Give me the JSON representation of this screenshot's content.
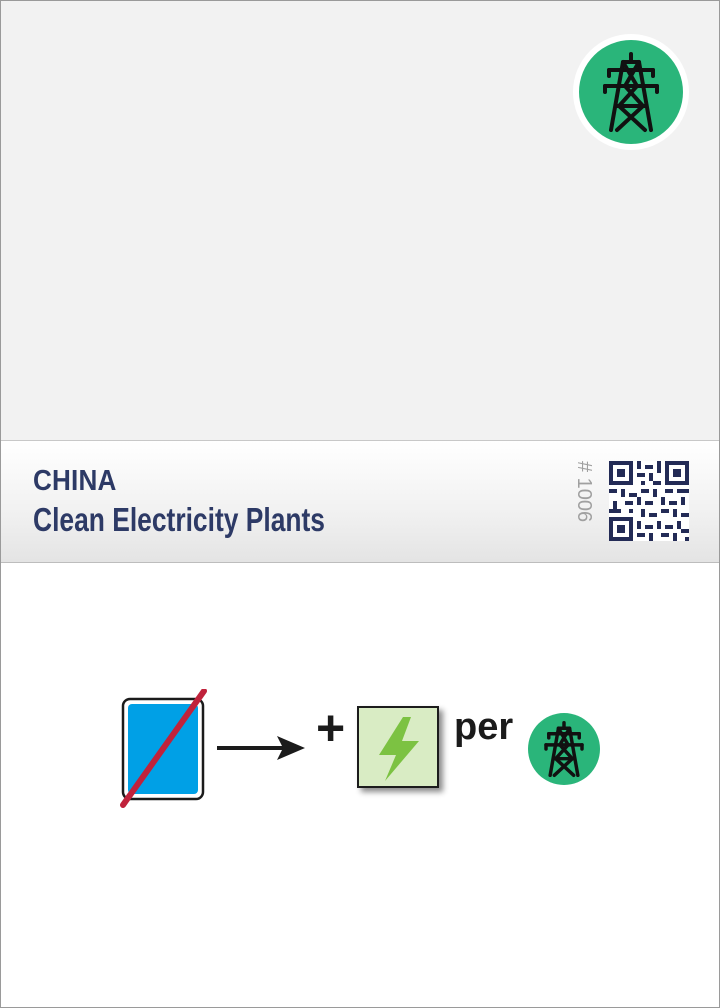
{
  "card": {
    "country": "CHINA",
    "title": "Clean Electricity Plants",
    "card_number": "# 1006"
  },
  "effect": {
    "plus_label": "+",
    "per_label": "per"
  },
  "icons": {
    "top_badge": "power-tower-icon",
    "discard_card": "blue-card-icon",
    "arrow": "arrow-right-icon",
    "energy": "lightning-bolt-icon",
    "per_badge": "power-tower-icon"
  },
  "colors": {
    "title": "#2d3a66",
    "badge_green": "#2ab57a",
    "card_blue": "#00a0e6",
    "strike_red": "#c0223b",
    "energy_bg": "#d9ecc4",
    "bolt_green": "#7cc242"
  }
}
